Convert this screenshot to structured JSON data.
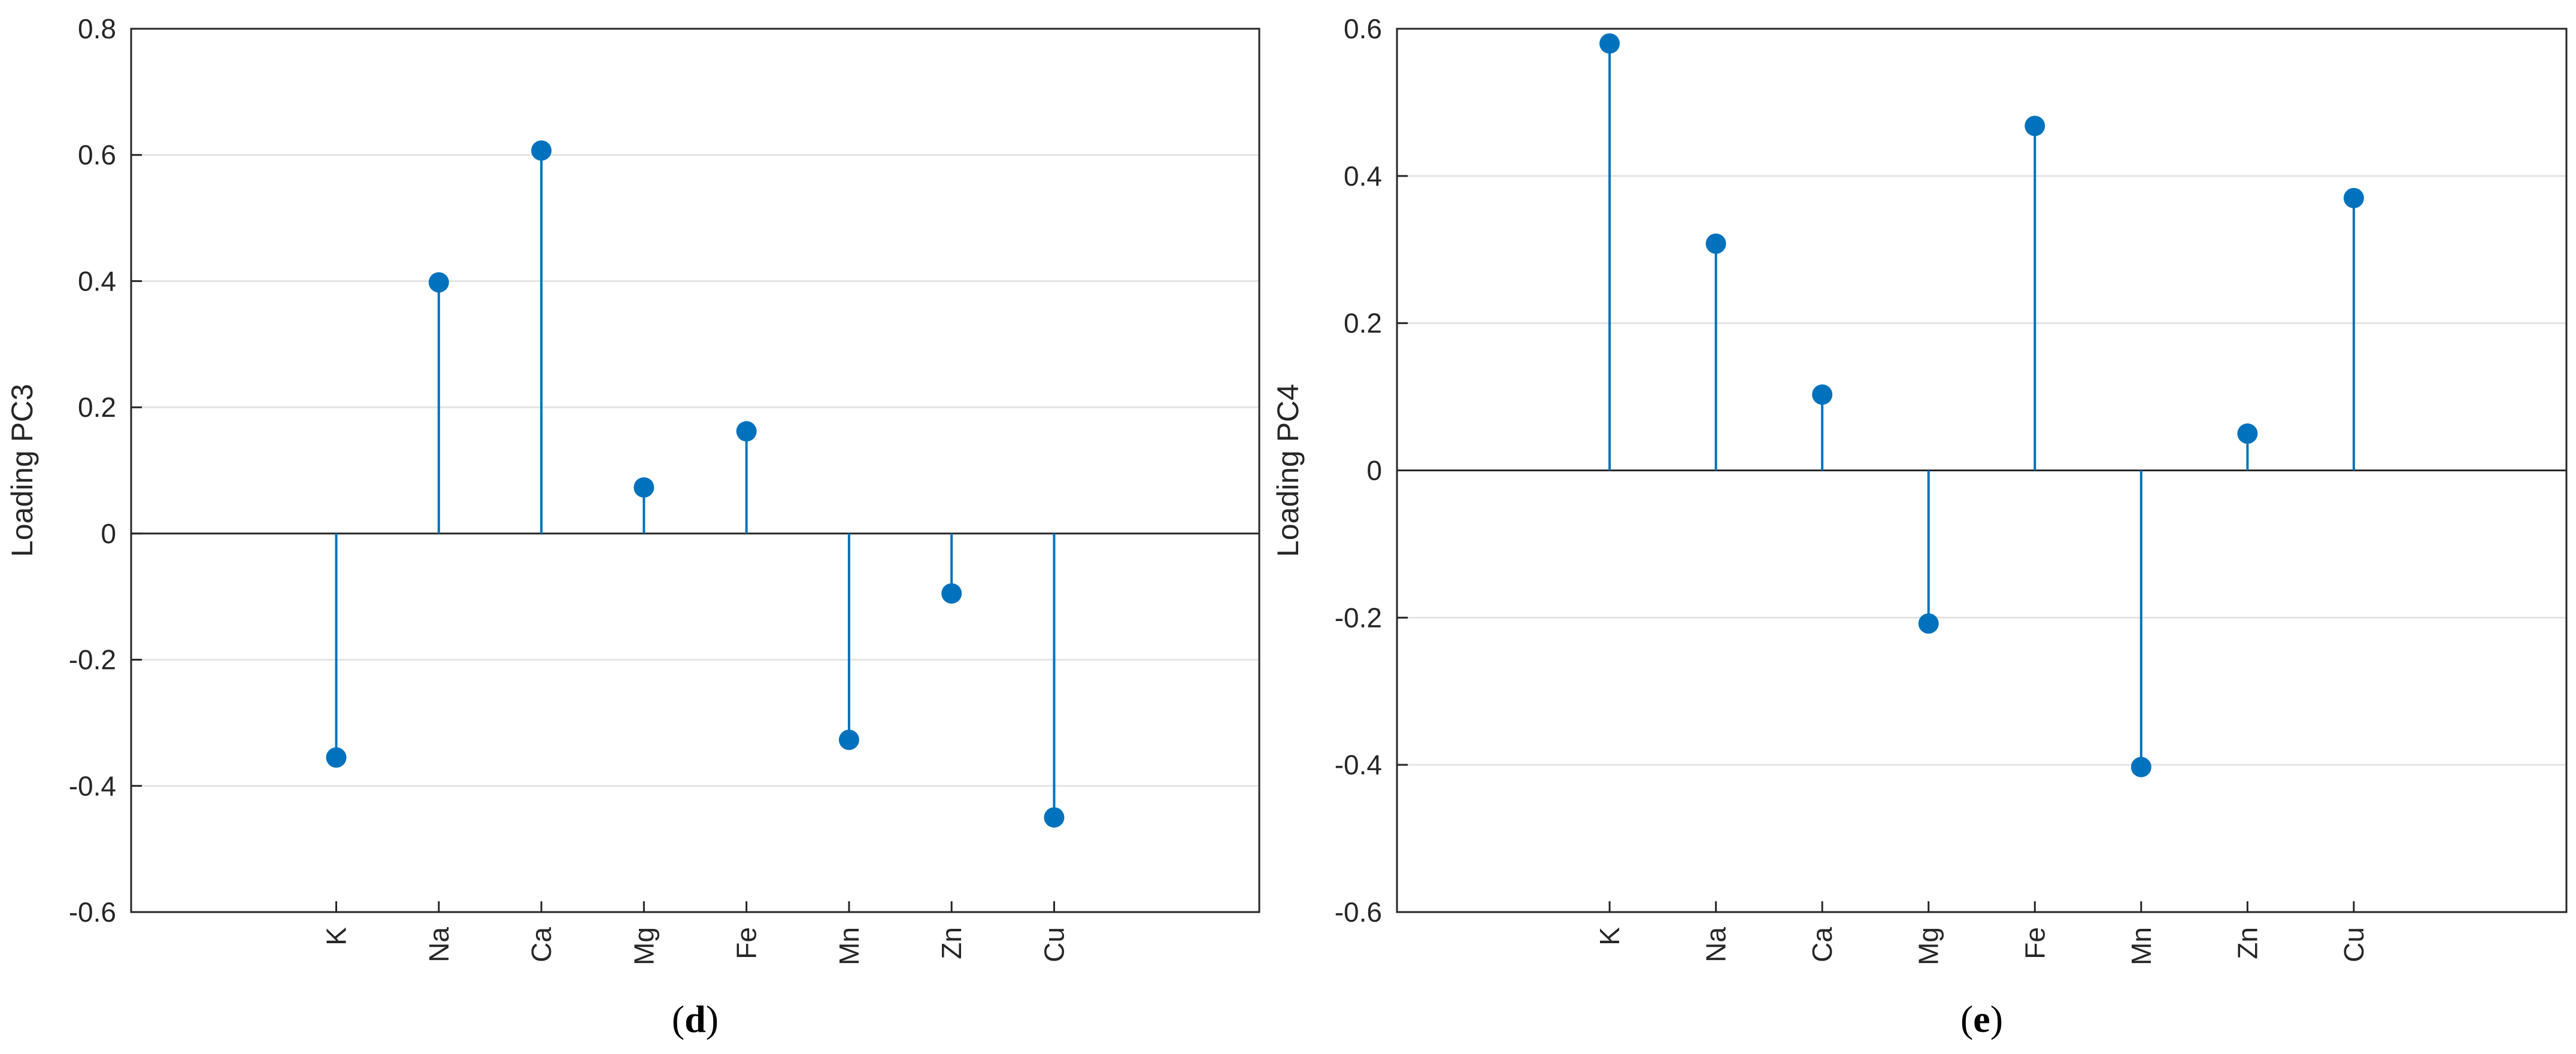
{
  "chart_data": [
    {
      "type": "stem",
      "panel_label": "d",
      "categories": [
        "K",
        "Na",
        "Ca",
        "Mg",
        "Fe",
        "Mn",
        "Zn",
        "Cu"
      ],
      "values": [
        -0.355,
        0.398,
        0.607,
        0.073,
        0.162,
        -0.327,
        -0.095,
        -0.45
      ],
      "ylabel": "Loading PC3",
      "xlabel": "",
      "ylim": [
        -0.6,
        0.8
      ],
      "yticks": [
        -0.6,
        -0.4,
        -0.2,
        0,
        0.2,
        0.4,
        0.6,
        0.8
      ],
      "ytick_labels": [
        "-0.6",
        "-0.4",
        "-0.2",
        "0",
        "0.2",
        "0.4",
        "0.6",
        "0.8"
      ],
      "grid": "y",
      "marker_color": "#0072BD"
    },
    {
      "type": "stem",
      "panel_label": "e",
      "categories": [
        "K",
        "Na",
        "Ca",
        "Mg",
        "Fe",
        "Mn",
        "Zn",
        "Cu"
      ],
      "values": [
        0.58,
        0.308,
        0.103,
        -0.208,
        0.468,
        -0.403,
        0.05,
        0.37
      ],
      "ylabel": "Loading PC4",
      "xlabel": "",
      "ylim": [
        -0.6,
        0.6
      ],
      "yticks": [
        -0.6,
        -0.4,
        -0.2,
        0,
        0.2,
        0.4,
        0.6
      ],
      "ytick_labels": [
        "-0.6",
        "-0.4",
        "-0.2",
        "0",
        "0.2",
        "0.4",
        "0.6"
      ],
      "grid": "y",
      "marker_color": "#0072BD"
    }
  ]
}
